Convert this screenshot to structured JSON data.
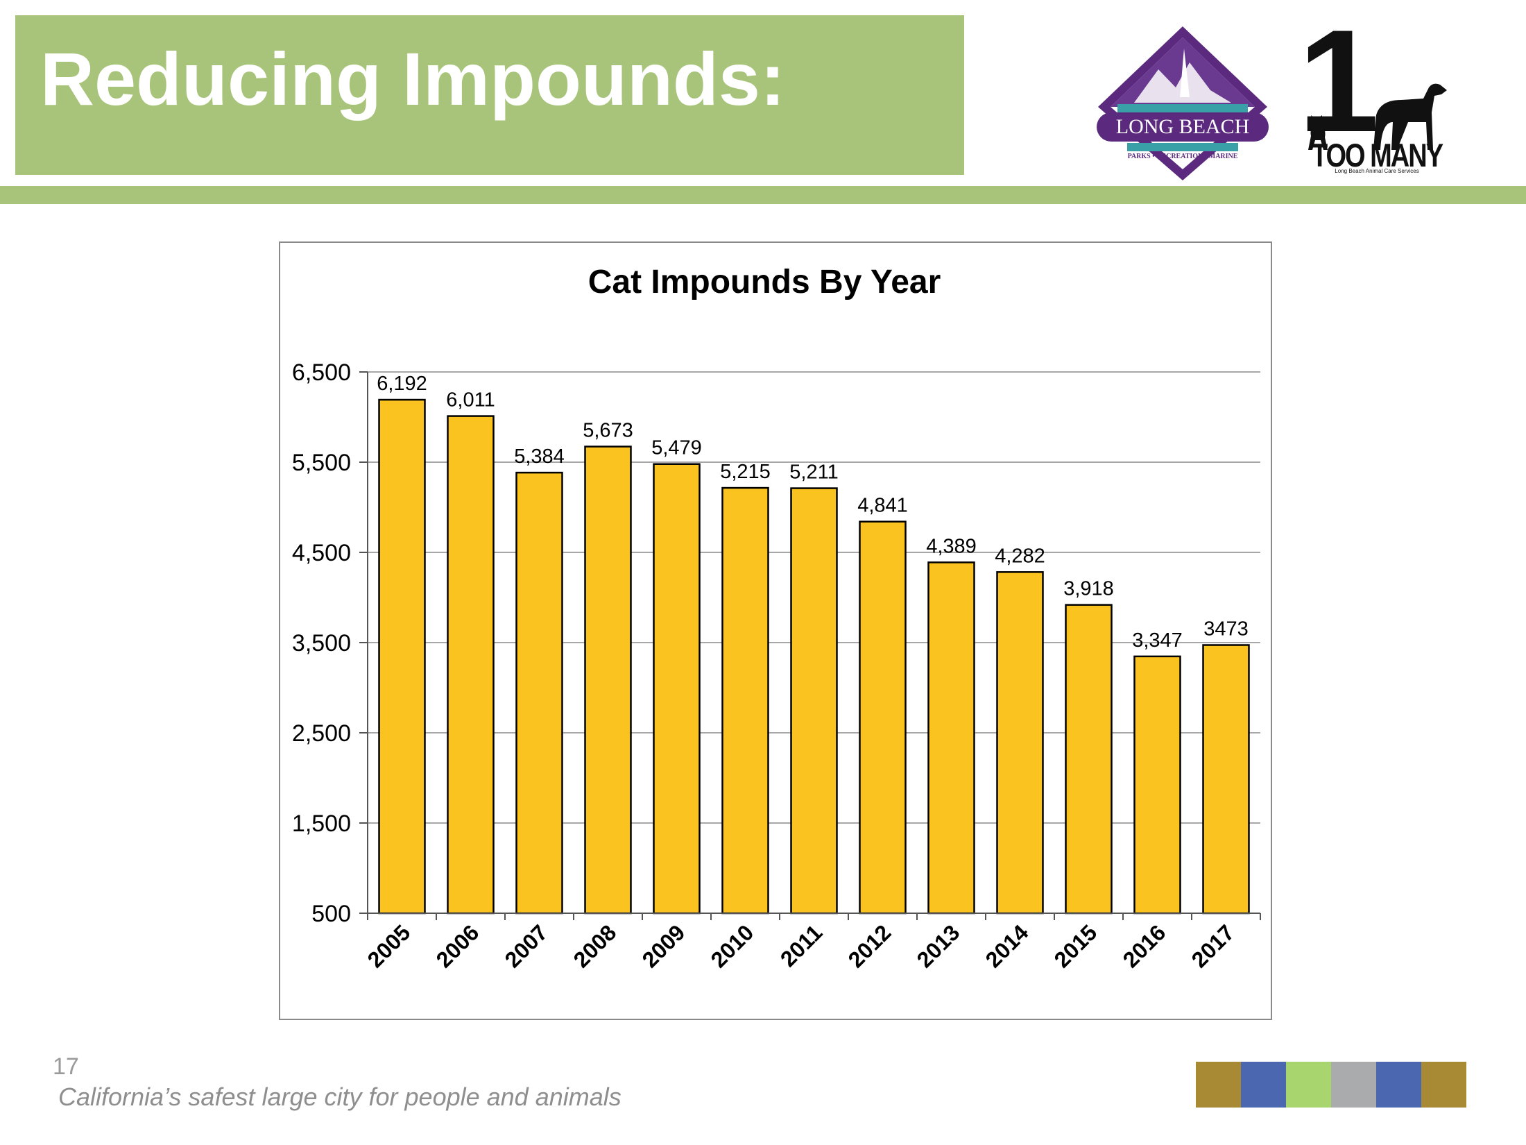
{
  "slide": {
    "title": "Reducing Impounds:",
    "page_number": "17",
    "tagline": "California’s safest large city for people and animals",
    "accent_color": "#a8c47a"
  },
  "logos": {
    "long_beach": {
      "name": "LONG BEACH",
      "subtitle": "PARKS • RECREATION • MARINE",
      "colors": [
        "#5b2a7e",
        "#3aa0a8"
      ]
    },
    "one_too_many": {
      "numeral": "1",
      "name": "TOO MANY",
      "subtitle": "Long Beach Animal Care Services"
    }
  },
  "swatch_colors": [
    "#a88a35",
    "#4a67b0",
    "#a8d56e",
    "#a9abad",
    "#4a67b0",
    "#a88a35"
  ],
  "chart_data": {
    "type": "bar",
    "title": "Cat Impounds By Year",
    "xlabel": "",
    "ylabel": "",
    "categories": [
      "2005",
      "2006",
      "2007",
      "2008",
      "2009",
      "2010",
      "2011",
      "2012",
      "2013",
      "2014",
      "2015",
      "2016",
      "2017"
    ],
    "values": [
      6192,
      6011,
      5384,
      5673,
      5479,
      5215,
      5211,
      4841,
      4389,
      4282,
      3918,
      3347,
      3473
    ],
    "data_labels": [
      "6,192",
      "6,011",
      "5,384",
      "5,673",
      "5,479",
      "5,215",
      "5,211",
      "4,841",
      "4,389",
      "4,282",
      "3,918",
      "3,347",
      "3473"
    ],
    "ylim": [
      500,
      6500
    ],
    "yticks": [
      500,
      1500,
      2500,
      3500,
      4500,
      5500,
      6500
    ],
    "ytick_labels": [
      "500",
      "1,500",
      "2,500",
      "3,500",
      "4,500",
      "5,500",
      "6,500"
    ],
    "grid": true,
    "bar_color": "#fbc31f",
    "bar_edge_color": "#000000"
  }
}
